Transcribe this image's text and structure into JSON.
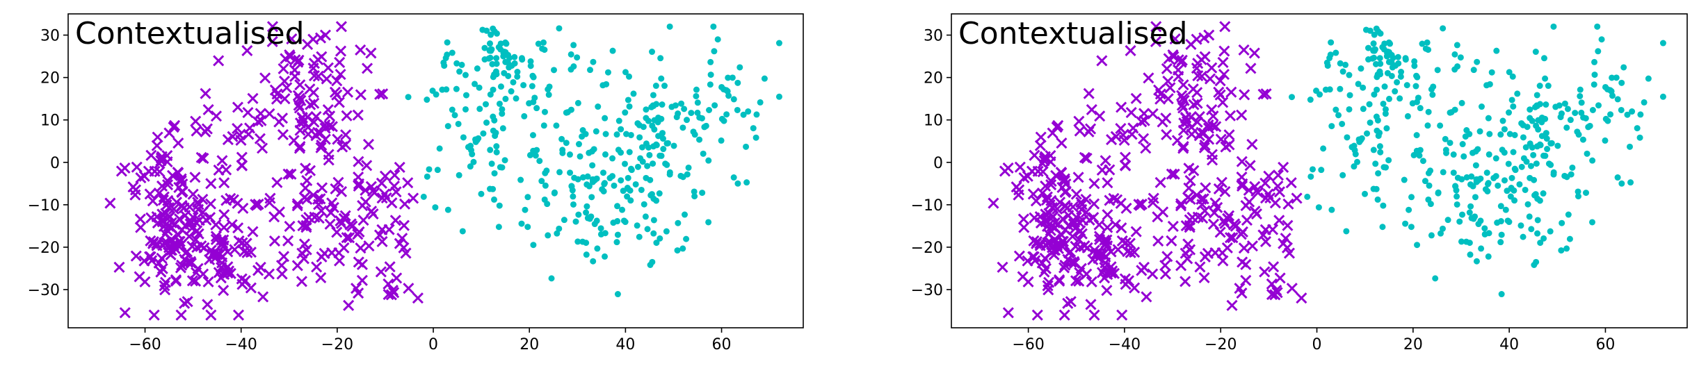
{
  "chart_data": [
    {
      "type": "scatter",
      "title": "Contextualised",
      "xlim": [
        -76,
        77
      ],
      "ylim": [
        -39,
        35
      ],
      "xticks": [
        -60,
        -40,
        -20,
        0,
        20,
        40,
        60
      ],
      "yticks": [
        -30,
        -20,
        -10,
        0,
        10,
        20,
        30
      ],
      "grid": false,
      "series": [
        {
          "marker": "x",
          "color": "#9400d3",
          "n": 470,
          "regions": [
            {
              "cx": -55,
              "cy": -12,
              "sx": 5,
              "sy": 10,
              "w": 0.25
            },
            {
              "cx": -45,
              "cy": -20,
              "sx": 6,
              "sy": 8,
              "w": 0.18
            },
            {
              "cx": -40,
              "cy": 8,
              "sx": 6,
              "sy": 8,
              "w": 0.12
            },
            {
              "cx": -25,
              "cy": 15,
              "sx": 6,
              "sy": 9,
              "w": 0.18
            },
            {
              "cx": -25,
              "cy": -12,
              "sx": 6,
              "sy": 8,
              "w": 0.15
            },
            {
              "cx": -12,
              "cy": -15,
              "sx": 5,
              "sy": 10,
              "w": 0.12
            }
          ]
        },
        {
          "marker": "o",
          "color": "#00bfc0",
          "n": 430,
          "regions": [
            {
              "cx": 10,
              "cy": 10,
              "sx": 8,
              "sy": 9,
              "w": 0.2
            },
            {
              "cx": 35,
              "cy": -5,
              "sx": 12,
              "sy": 10,
              "w": 0.35
            },
            {
              "cx": 50,
              "cy": 10,
              "sx": 10,
              "sy": 10,
              "w": 0.3
            },
            {
              "cx": 15,
              "cy": 25,
              "sx": 6,
              "sy": 4,
              "w": 0.15
            }
          ]
        }
      ]
    },
    {
      "type": "scatter",
      "title": "Contextualised",
      "xlim": [
        -76,
        77
      ],
      "ylim": [
        -39,
        35
      ],
      "xticks": [
        -60,
        -40,
        -20,
        0,
        20,
        40,
        60
      ],
      "yticks": [
        -30,
        -20,
        -10,
        0,
        10,
        20,
        30
      ],
      "grid": false,
      "series": [
        {
          "marker": "x",
          "color": "#9400d3",
          "n": 470,
          "regions": [
            {
              "cx": -55,
              "cy": -12,
              "sx": 5,
              "sy": 10,
              "w": 0.25
            },
            {
              "cx": -45,
              "cy": -20,
              "sx": 6,
              "sy": 8,
              "w": 0.18
            },
            {
              "cx": -40,
              "cy": 8,
              "sx": 6,
              "sy": 8,
              "w": 0.12
            },
            {
              "cx": -25,
              "cy": 15,
              "sx": 6,
              "sy": 9,
              "w": 0.18
            },
            {
              "cx": -25,
              "cy": -12,
              "sx": 6,
              "sy": 8,
              "w": 0.15
            },
            {
              "cx": -12,
              "cy": -15,
              "sx": 5,
              "sy": 10,
              "w": 0.12
            }
          ]
        },
        {
          "marker": "o",
          "color": "#00bfc0",
          "n": 430,
          "regions": [
            {
              "cx": 10,
              "cy": 10,
              "sx": 8,
              "sy": 9,
              "w": 0.2
            },
            {
              "cx": 35,
              "cy": -5,
              "sx": 12,
              "sy": 10,
              "w": 0.35
            },
            {
              "cx": 50,
              "cy": 10,
              "sx": 10,
              "sy": 10,
              "w": 0.3
            },
            {
              "cx": 15,
              "cy": 25,
              "sx": 6,
              "sy": 4,
              "w": 0.15
            }
          ]
        }
      ]
    }
  ]
}
